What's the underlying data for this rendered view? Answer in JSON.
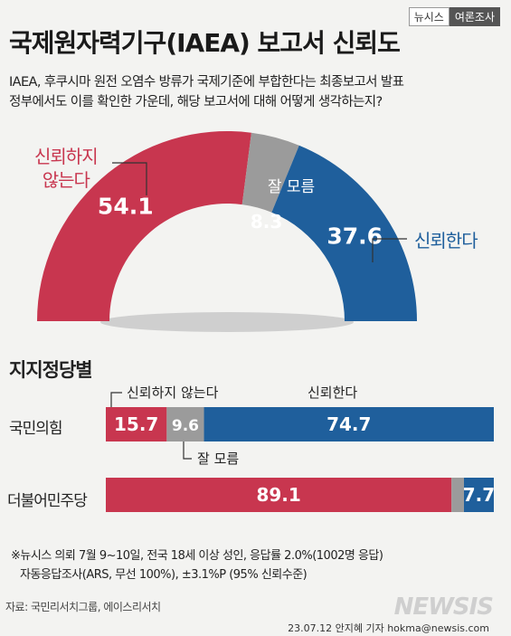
{
  "brand": {
    "left": "뉴시스",
    "right": "여론조사"
  },
  "title": "국제원자력기구(IAEA) 보고서 신뢰도",
  "question": {
    "line1": "IAEA, 후쿠시마 원전 오염수 방류가 국제기준에 부합한다는 최종보고서 발표",
    "line2": "정부에서도 이를 확인한 가운데, 해당 보고서에 대해 어떻게 생각하는지?"
  },
  "colors": {
    "distrust": "#c8364f",
    "unknown": "#9b9b9b",
    "trust": "#1f5f9c"
  },
  "chart_data": [
    {
      "type": "pie",
      "style": "half-donut",
      "categories": [
        "신뢰하지 않는다",
        "잘 모름",
        "신뢰한다"
      ],
      "values": [
        54.1,
        8.3,
        37.6
      ],
      "value_labels": [
        "54.1",
        "8.3",
        "37.6"
      ],
      "unit": "%"
    },
    {
      "type": "bar",
      "orientation": "horizontal",
      "stacked": true,
      "title": "지지정당별",
      "categories": [
        "국민의힘",
        "더불어민주당"
      ],
      "series": [
        {
          "name": "신뢰하지 않는다",
          "values": [
            15.7,
            89.1
          ]
        },
        {
          "name": "잘 모름",
          "values": [
            9.6,
            3.2
          ]
        },
        {
          "name": "신뢰한다",
          "values": [
            74.7,
            7.7
          ]
        }
      ],
      "value_labels": [
        [
          "15.7",
          "9.6",
          "74.7"
        ],
        [
          "89.1",
          "",
          "7.7"
        ]
      ],
      "callouts": {
        "distrust": "신뢰하지 않는다",
        "trust": "신뢰한다",
        "unknown": "잘 모름"
      }
    }
  ],
  "notes": {
    "line1": "※뉴시스 의뢰 7월 9~10일, 전국 18세 이상 성인, 응답률 2.0%(1002명 응답)",
    "line2": "자동응답조사(ARS, 무선 100%), ±3.1%P (95% 신뢰수준)"
  },
  "source": "자료: 국민리서치그룹, 에이스리서치",
  "credit": "23.07.12 안지혜 기자 hokma@newsis.com",
  "logo": "NEWSIS"
}
